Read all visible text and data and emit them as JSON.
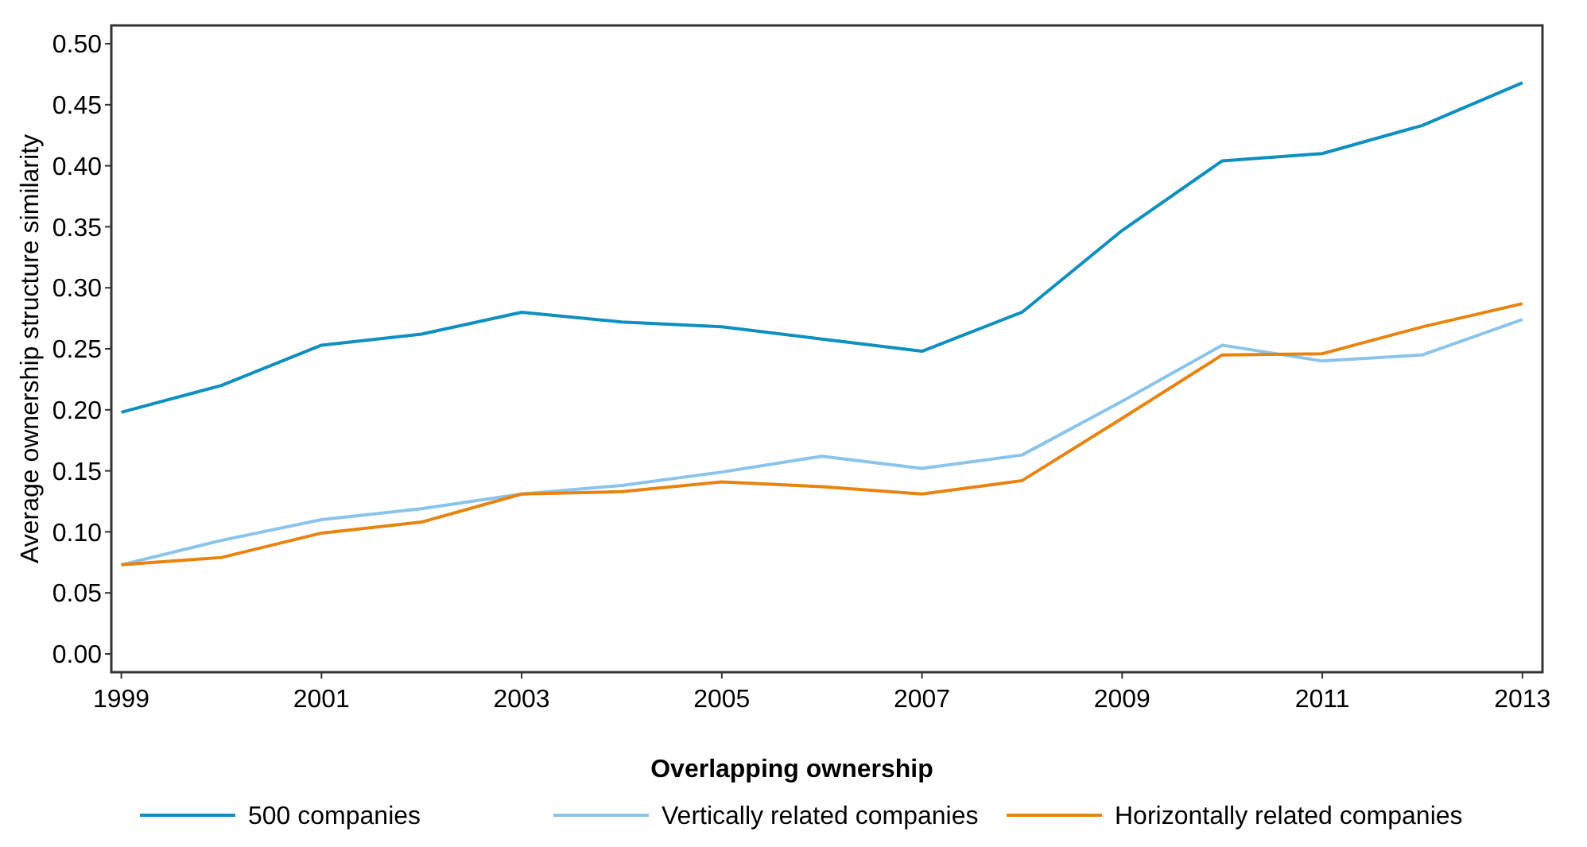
{
  "chart_data": {
    "type": "line",
    "ylabel": "Average ownership structure similarity",
    "legend_title": "Overlapping ownership",
    "legend": "bottom",
    "grid": false,
    "x": [
      1999,
      2000,
      2001,
      2002,
      2003,
      2004,
      2005,
      2006,
      2007,
      2008,
      2009,
      2010,
      2011,
      2012,
      2013
    ],
    "xlim": [
      1998.9,
      2013.2
    ],
    "xticks": [
      1999,
      2001,
      2003,
      2005,
      2007,
      2009,
      2011,
      2013
    ],
    "ylim": [
      -0.015,
      0.515
    ],
    "yticks": [
      {
        "value": 0,
        "label": "0.00"
      },
      {
        "value": 0.05,
        "label": "0.05"
      },
      {
        "value": 0.1,
        "label": "0.10"
      },
      {
        "value": 0.15,
        "label": "0.15"
      },
      {
        "value": 0.2,
        "label": "0.20"
      },
      {
        "value": 0.25,
        "label": "0.25"
      },
      {
        "value": 0.3,
        "label": "0.30"
      },
      {
        "value": 0.35,
        "label": "0.35"
      },
      {
        "value": 0.4,
        "label": "0.40"
      },
      {
        "value": 0.45,
        "label": "0.45"
      },
      {
        "value": 0.5,
        "label": "0.50"
      }
    ],
    "series": [
      {
        "name": "500 companies",
        "color": "#0e8fc0",
        "values": [
          0.198,
          0.22,
          0.253,
          0.262,
          0.28,
          0.272,
          0.268,
          0.258,
          0.248,
          0.28,
          0.347,
          0.404,
          0.41,
          0.433,
          0.468
        ]
      },
      {
        "name": "Vertically related companies",
        "color": "#8ac4ec",
        "values": [
          0.073,
          0.093,
          0.11,
          0.119,
          0.131,
          0.138,
          0.149,
          0.162,
          0.152,
          0.163,
          0.207,
          0.253,
          0.24,
          0.245,
          0.274
        ]
      },
      {
        "name": "Horizontally related companies",
        "color": "#e8840e",
        "values": [
          0.073,
          0.079,
          0.099,
          0.108,
          0.131,
          0.133,
          0.141,
          0.137,
          0.131,
          0.142,
          0.193,
          0.245,
          0.246,
          0.268,
          0.287
        ]
      }
    ]
  }
}
